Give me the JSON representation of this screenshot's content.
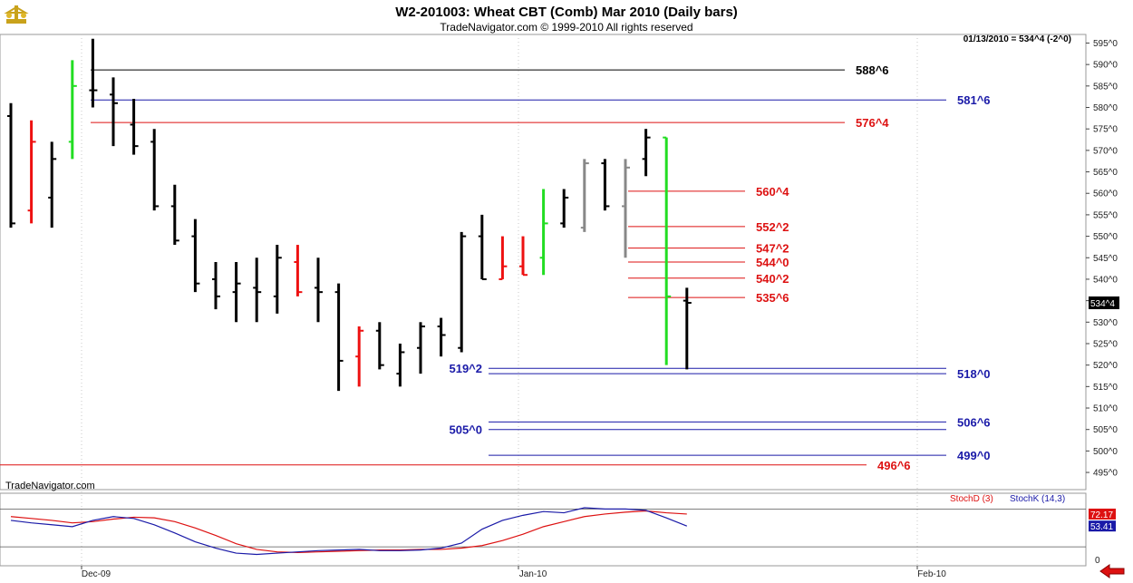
{
  "header": {
    "title": "W2-201003:  Wheat CBT (Comb) Mar 2010  (Daily bars)",
    "subtitle": "TradeNavigator.com © 1999-2010 All rights reserved",
    "info": "01/13/2010 = 534^4 (-2^0)",
    "watermark": "TradeNavigator.com"
  },
  "chart_data": [
    {
      "type": "ohlc",
      "ylim": [
        491,
        597
      ],
      "y_ticks": [
        {
          "v": 495,
          "t": "495^0"
        },
        {
          "v": 500,
          "t": "500^0"
        },
        {
          "v": 505,
          "t": "505^0"
        },
        {
          "v": 510,
          "t": "510^0"
        },
        {
          "v": 515,
          "t": "515^0"
        },
        {
          "v": 520,
          "t": "520^0"
        },
        {
          "v": 525,
          "t": "525^0"
        },
        {
          "v": 530,
          "t": "530^0"
        },
        {
          "v": 535,
          "t": "535^0"
        },
        {
          "v": 540,
          "t": "540^0"
        },
        {
          "v": 545,
          "t": "545^0"
        },
        {
          "v": 550,
          "t": "550^0"
        },
        {
          "v": 555,
          "t": "555^0"
        },
        {
          "v": 560,
          "t": "560^0"
        },
        {
          "v": 565,
          "t": "565^0"
        },
        {
          "v": 570,
          "t": "570^0"
        },
        {
          "v": 575,
          "t": "575^0"
        },
        {
          "v": 580,
          "t": "580^0"
        },
        {
          "v": 585,
          "t": "585^0"
        },
        {
          "v": 590,
          "t": "590^0"
        },
        {
          "v": 595,
          "t": "595^0"
        }
      ],
      "x_labels": [
        "Dec-09",
        "Jan-10",
        "Feb-10"
      ],
      "last_price_label": "534^4",
      "colors": {
        "default": "#000000",
        "up": "#22dd22",
        "down": "#ee1111",
        "gray": "#888888"
      },
      "bars": [
        {
          "o": 578,
          "h": 581,
          "l": 552,
          "c": 553,
          "color": "default"
        },
        {
          "o": 556,
          "h": 577,
          "l": 553,
          "c": 572,
          "color": "down"
        },
        {
          "o": 559,
          "h": 572,
          "l": 552,
          "c": 568,
          "color": "default"
        },
        {
          "o": 572,
          "h": 591,
          "l": 568,
          "c": 585,
          "color": "up"
        },
        {
          "o": 584,
          "h": 596,
          "l": 580,
          "c": 584,
          "color": "default"
        },
        {
          "o": 583,
          "h": 587,
          "l": 571,
          "c": 581,
          "color": "default"
        },
        {
          "o": 576,
          "h": 582,
          "l": 569,
          "c": 571,
          "color": "default"
        },
        {
          "o": 572,
          "h": 575,
          "l": 556,
          "c": 557,
          "color": "default"
        },
        {
          "o": 557,
          "h": 562,
          "l": 548,
          "c": 549,
          "color": "default"
        },
        {
          "o": 550,
          "h": 554,
          "l": 537,
          "c": 539,
          "color": "default"
        },
        {
          "o": 540,
          "h": 544,
          "l": 533,
          "c": 536,
          "color": "default"
        },
        {
          "o": 537,
          "h": 544,
          "l": 530,
          "c": 539,
          "color": "default"
        },
        {
          "o": 538,
          "h": 545,
          "l": 530,
          "c": 537,
          "color": "default"
        },
        {
          "o": 536,
          "h": 548,
          "l": 532,
          "c": 545,
          "color": "default"
        },
        {
          "o": 544,
          "h": 548,
          "l": 536,
          "c": 537,
          "color": "down"
        },
        {
          "o": 538,
          "h": 545,
          "l": 530,
          "c": 537,
          "color": "default"
        },
        {
          "o": 537,
          "h": 539,
          "l": 514,
          "c": 521,
          "color": "default"
        },
        {
          "o": 522,
          "h": 529,
          "l": 515,
          "c": 528,
          "color": "down"
        },
        {
          "o": 528,
          "h": 530,
          "l": 519,
          "c": 520,
          "color": "default"
        },
        {
          "o": 518,
          "h": 525,
          "l": 515,
          "c": 523,
          "color": "default"
        },
        {
          "o": 524,
          "h": 530,
          "l": 518,
          "c": 529,
          "color": "default"
        },
        {
          "o": 529,
          "h": 531,
          "l": 522,
          "c": 527,
          "color": "default"
        },
        {
          "o": 524,
          "h": 551,
          "l": 523,
          "c": 550,
          "color": "default"
        },
        {
          "o": 550,
          "h": 555,
          "l": 540,
          "c": 540,
          "color": "default"
        },
        {
          "o": 540,
          "h": 550,
          "l": 540,
          "c": 543,
          "color": "down"
        },
        {
          "o": 543,
          "h": 550,
          "l": 541,
          "c": 541,
          "color": "down"
        },
        {
          "o": 545,
          "h": 561,
          "l": 541,
          "c": 553,
          "color": "up"
        },
        {
          "o": 553,
          "h": 561,
          "l": 552,
          "c": 559,
          "color": "default"
        },
        {
          "o": 552,
          "h": 568,
          "l": 551,
          "c": 567,
          "color": "gray"
        },
        {
          "o": 567,
          "h": 568,
          "l": 556,
          "c": 557,
          "color": "default"
        },
        {
          "o": 557,
          "h": 568,
          "l": 545,
          "c": 566,
          "color": "gray"
        },
        {
          "o": 568,
          "h": 575,
          "l": 564,
          "c": 573,
          "color": "default"
        },
        {
          "o": 573,
          "h": 573,
          "l": 520,
          "c": 536,
          "color": "up"
        },
        {
          "o": 535,
          "h": 538,
          "l": 519,
          "c": 534.5,
          "color": "default"
        }
      ],
      "level_lines": [
        {
          "label": "588^6",
          "value": 588.75,
          "color": "#000000",
          "span": "early"
        },
        {
          "label": "581^6",
          "value": 581.75,
          "color": "#1a1aa8",
          "span": "early-long"
        },
        {
          "label": "576^4",
          "value": 576.5,
          "color": "#dd1111",
          "span": "early"
        },
        {
          "label": "560^4",
          "value": 560.5,
          "color": "#dd1111",
          "span": "recent"
        },
        {
          "label": "552^2",
          "value": 552.25,
          "color": "#dd1111",
          "span": "recent"
        },
        {
          "label": "547^2",
          "value": 547.25,
          "color": "#dd1111",
          "span": "recent"
        },
        {
          "label": "544^0",
          "value": 544.0,
          "color": "#dd1111",
          "span": "recent"
        },
        {
          "label": "540^2",
          "value": 540.25,
          "color": "#dd1111",
          "span": "recent"
        },
        {
          "label": "535^6",
          "value": 535.75,
          "color": "#dd1111",
          "span": "recent"
        },
        {
          "label": "519^2",
          "value": 519.25,
          "color": "#1a1aa8",
          "span": "mid",
          "label_side": "left"
        },
        {
          "label": "518^0",
          "value": 518.0,
          "color": "#1a1aa8",
          "span": "mid"
        },
        {
          "label": "506^6",
          "value": 506.75,
          "color": "#1a1aa8",
          "span": "mid"
        },
        {
          "label": "505^0",
          "value": 505.0,
          "color": "#1a1aa8",
          "span": "mid",
          "label_side": "left"
        },
        {
          "label": "499^0",
          "value": 499.0,
          "color": "#1a1aa8",
          "span": "mid"
        },
        {
          "label": "496^6",
          "value": 496.75,
          "color": "#dd1111",
          "span": "full"
        }
      ]
    },
    {
      "type": "line",
      "ylim": [
        -10,
        105
      ],
      "y_ticks": [
        {
          "v": 0,
          "t": "0"
        }
      ],
      "hlines": [
        20,
        80
      ],
      "legend": [
        {
          "name": "StochD (3)",
          "color": "#dd1111"
        },
        {
          "name": "StochK (14,3)",
          "color": "#1a1aa8"
        }
      ],
      "series": [
        {
          "name": "StochD (3)",
          "color": "#dd1111",
          "value_label": "72.17",
          "values": [
            68,
            65,
            62,
            58,
            60,
            64,
            67,
            66,
            60,
            50,
            38,
            25,
            16,
            12,
            11,
            12,
            13,
            14,
            15,
            15,
            16,
            16,
            18,
            22,
            30,
            40,
            52,
            60,
            68,
            72,
            75,
            77,
            74,
            72
          ]
        },
        {
          "name": "StochK (14,3)",
          "color": "#1a1aa8",
          "value_label": "53.41",
          "values": [
            62,
            58,
            55,
            52,
            62,
            68,
            65,
            55,
            42,
            28,
            18,
            10,
            8,
            10,
            12,
            14,
            15,
            16,
            14,
            14,
            15,
            18,
            26,
            48,
            62,
            70,
            76,
            74,
            82,
            80,
            80,
            78,
            66,
            53
          ]
        }
      ]
    }
  ]
}
